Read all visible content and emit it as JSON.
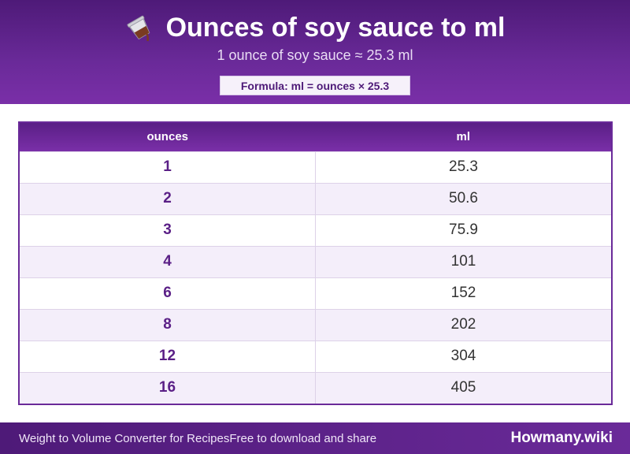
{
  "header": {
    "icon": "pouring-cup-icon",
    "title": "Ounces of soy sauce to ml",
    "subtitle": "1 ounce of soy sauce ≈ 25.3 ml",
    "formula": "Formula: ml = ounces × 25.3"
  },
  "table": {
    "columns": [
      "ounces",
      "ml"
    ],
    "rows": [
      [
        "1",
        "25.3"
      ],
      [
        "2",
        "50.6"
      ],
      [
        "3",
        "75.9"
      ],
      [
        "4",
        "101"
      ],
      [
        "6",
        "152"
      ],
      [
        "8",
        "202"
      ],
      [
        "12",
        "304"
      ],
      [
        "16",
        "405"
      ]
    ]
  },
  "footer": {
    "left_text": "Weight to Volume Converter for RecipesFree to download and share",
    "brand": "Howmany.wiki"
  },
  "colors": {
    "primary": "#6a2a99",
    "dark": "#4e1a78",
    "row_alt": "#f4eefa"
  }
}
